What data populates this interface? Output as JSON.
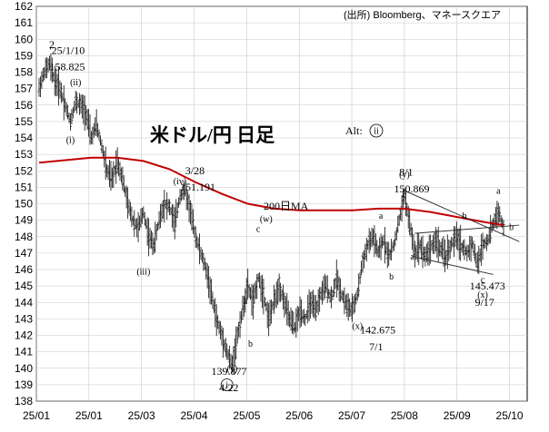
{
  "chart_data": {
    "type": "candlestick",
    "title": "米ドル/円 日足",
    "source": "(出所) Bloomberg、マネースクエア",
    "figure_label": "2",
    "alt_label": "Alt:",
    "alt_wave": "ii",
    "ylim": [
      138,
      162
    ],
    "y_ticks": [
      138,
      139,
      140,
      141,
      142,
      143,
      144,
      145,
      146,
      147,
      148,
      149,
      150,
      151,
      152,
      153,
      154,
      155,
      156,
      157,
      158,
      159,
      160,
      161,
      162
    ],
    "x_tick_labels": [
      "25/01",
      "25/01",
      "25/03",
      "25/04",
      "25/05",
      "25/06",
      "25/07",
      "25/08",
      "25/09",
      "25/10"
    ],
    "ma_label": "200日MA",
    "ma_color": "#c00000",
    "price_path": [
      [
        0,
        157.0
      ],
      [
        4,
        158.0
      ],
      [
        8,
        158.5
      ],
      [
        12,
        157.5
      ],
      [
        16,
        157.0
      ],
      [
        20,
        156.0
      ],
      [
        24,
        155.0
      ],
      [
        28,
        156.2
      ],
      [
        32,
        156.0
      ],
      [
        36,
        155.5
      ],
      [
        40,
        154.0
      ],
      [
        44,
        154.8
      ],
      [
        48,
        153.5
      ],
      [
        52,
        152.0
      ],
      [
        56,
        151.5
      ],
      [
        60,
        152.6
      ],
      [
        64,
        151.5
      ],
      [
        68,
        150.0
      ],
      [
        72,
        149.0
      ],
      [
        76,
        148.5
      ],
      [
        80,
        149.5
      ],
      [
        84,
        148.0
      ],
      [
        88,
        147.5
      ],
      [
        92,
        149.0
      ],
      [
        96,
        150.0
      ],
      [
        100,
        149.8
      ],
      [
        104,
        148.8
      ],
      [
        108,
        150.5
      ],
      [
        112,
        150.8
      ],
      [
        116,
        149.5
      ],
      [
        120,
        148.0
      ],
      [
        124,
        147.0
      ],
      [
        128,
        146.0
      ],
      [
        132,
        144.5
      ],
      [
        136,
        143.0
      ],
      [
        140,
        142.0
      ],
      [
        144,
        141.0
      ],
      [
        148,
        140.2
      ],
      [
        152,
        142.0
      ],
      [
        156,
        143.5
      ],
      [
        160,
        145.0
      ],
      [
        164,
        144.0
      ],
      [
        168,
        145.5
      ],
      [
        172,
        144.5
      ],
      [
        176,
        143.0
      ],
      [
        180,
        144.0
      ],
      [
        184,
        145.0
      ],
      [
        188,
        144.0
      ],
      [
        192,
        143.0
      ],
      [
        196,
        142.5
      ],
      [
        200,
        143.5
      ],
      [
        204,
        143.0
      ],
      [
        208,
        144.0
      ],
      [
        212,
        143.5
      ],
      [
        216,
        144.5
      ],
      [
        220,
        145.0
      ],
      [
        224,
        144.2
      ],
      [
        228,
        145.5
      ],
      [
        232,
        144.5
      ],
      [
        236,
        143.8
      ],
      [
        240,
        143.5
      ],
      [
        244,
        144.5
      ],
      [
        248,
        146.5
      ],
      [
        252,
        147.5
      ],
      [
        256,
        148.0
      ],
      [
        260,
        147.0
      ],
      [
        264,
        147.8
      ],
      [
        268,
        146.8
      ],
      [
        272,
        147.5
      ],
      [
        276,
        149.0
      ],
      [
        280,
        150.5
      ],
      [
        284,
        148.8
      ],
      [
        288,
        147.0
      ],
      [
        292,
        147.5
      ],
      [
        296,
        146.8
      ],
      [
        300,
        147.3
      ],
      [
        304,
        147.8
      ],
      [
        308,
        147.2
      ],
      [
        312,
        146.8
      ],
      [
        316,
        147.5
      ],
      [
        320,
        148.0
      ],
      [
        324,
        147.4
      ],
      [
        328,
        147.0
      ],
      [
        332,
        147.6
      ],
      [
        336,
        146.3
      ],
      [
        340,
        147.5
      ],
      [
        344,
        147.8
      ],
      [
        348,
        148.8
      ],
      [
        352,
        149.5
      ],
      [
        356,
        148.5
      ]
    ],
    "ma_path": [
      [
        0,
        152.5
      ],
      [
        40,
        152.8
      ],
      [
        60,
        152.8
      ],
      [
        80,
        152.6
      ],
      [
        100,
        152.1
      ],
      [
        120,
        151.3
      ],
      [
        140,
        150.6
      ],
      [
        160,
        150.0
      ],
      [
        180,
        149.7
      ],
      [
        200,
        149.6
      ],
      [
        220,
        149.6
      ],
      [
        240,
        149.6
      ],
      [
        260,
        149.7
      ],
      [
        280,
        149.7
      ],
      [
        300,
        149.5
      ],
      [
        320,
        149.2
      ],
      [
        340,
        148.9
      ],
      [
        356,
        148.7
      ]
    ],
    "annotations": [
      {
        "text": "'25/1/10",
        "x": 8,
        "y": 159.1
      },
      {
        "text": "158.825",
        "x": 8,
        "y": 158.1
      },
      {
        "text": "3/28",
        "x": 112,
        "y": 151.8
      },
      {
        "text": "151.191",
        "x": 108,
        "y": 150.8
      },
      {
        "text": "139.877",
        "x": 132,
        "y": 139.6
      },
      {
        "text": "4/22",
        "x": 138,
        "y": 138.6
      },
      {
        "text": "8/1",
        "x": 276,
        "y": 151.7
      },
      {
        "text": "150.869",
        "x": 272,
        "y": 150.7
      },
      {
        "text": "142.675",
        "x": 246,
        "y": 142.1
      },
      {
        "text": "7/1",
        "x": 253,
        "y": 141.1
      },
      {
        "text": "145.473",
        "x": 330,
        "y": 144.8
      },
      {
        "text": "9/17",
        "x": 334,
        "y": 143.8
      }
    ],
    "wave_labels": [
      {
        "text": "(ii)",
        "x": 28,
        "y": 157.2
      },
      {
        "text": "(i)",
        "x": 24,
        "y": 153.7
      },
      {
        "text": "(iv)",
        "x": 108,
        "y": 151.2
      },
      {
        "text": "(iii)",
        "x": 80,
        "y": 145.7
      },
      {
        "text": "a",
        "x": 158,
        "y": 143.9
      },
      {
        "text": "b",
        "x": 162,
        "y": 141.3
      },
      {
        "text": "(v)",
        "x": 148,
        "y": 139.8
      },
      {
        "text": "c",
        "x": 168,
        "y": 148.3
      },
      {
        "text": "(w)",
        "x": 174,
        "y": 148.9
      },
      {
        "text": "(x)",
        "x": 244,
        "y": 142.4
      },
      {
        "text": "a",
        "x": 262,
        "y": 149.1
      },
      {
        "text": "b",
        "x": 270,
        "y": 145.4
      },
      {
        "text": "(y)",
        "x": 280,
        "y": 151.6
      },
      {
        "text": "c",
        "x": 280,
        "y": 150.4
      },
      {
        "text": "a",
        "x": 286,
        "y": 146.6
      },
      {
        "text": "b",
        "x": 326,
        "y": 149.1
      },
      {
        "text": "c",
        "x": 340,
        "y": 145.2
      },
      {
        "text": "(x)",
        "x": 340,
        "y": 144.3
      },
      {
        "text": "a",
        "x": 352,
        "y": 150.6
      },
      {
        "text": "b",
        "x": 362,
        "y": 148.4
      }
    ],
    "wave_circled": [
      {
        "text": "i",
        "x": 144,
        "y": 138.8
      }
    ],
    "trendlines": [
      {
        "from": [
          280,
          150.8
        ],
        "to": [
          368,
          147.7
        ]
      },
      {
        "from": [
          288,
          148.2
        ],
        "to": [
          368,
          148.7
        ]
      },
      {
        "from": [
          286,
          146.8
        ],
        "to": [
          348,
          145.7
        ]
      }
    ]
  }
}
